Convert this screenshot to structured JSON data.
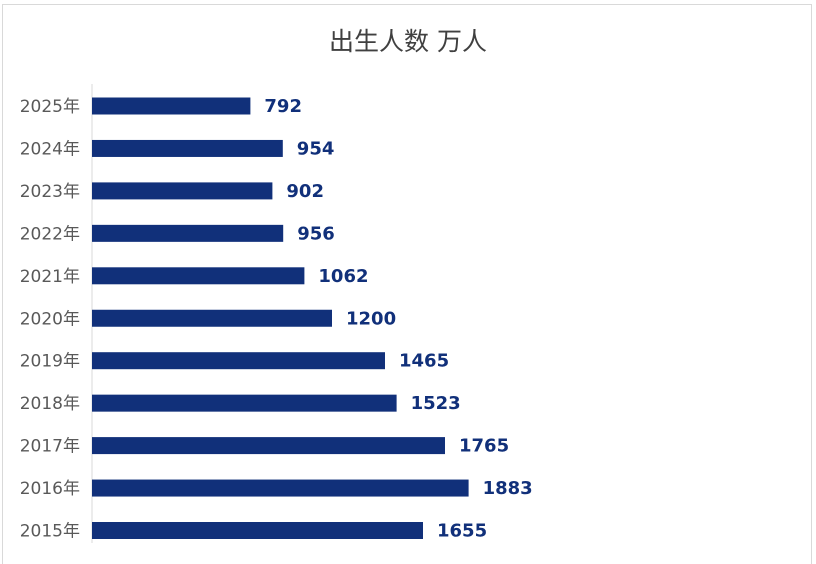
{
  "chart_data": {
    "type": "bar",
    "orientation": "horizontal",
    "title": "出生人数 万人",
    "categories": [
      "2025年",
      "2024年",
      "2023年",
      "2022年",
      "2021年",
      "2020年",
      "2019年",
      "2018年",
      "2017年",
      "2016年",
      "2015年"
    ],
    "values": [
      792,
      954,
      902,
      956,
      1062,
      1200,
      1465,
      1523,
      1765,
      1883,
      1655
    ],
    "xlabel": "",
    "ylabel": "",
    "grid": false,
    "legend": "none",
    "data_labels": true,
    "bar_color": "#11307a",
    "label_color": "#11307a"
  }
}
